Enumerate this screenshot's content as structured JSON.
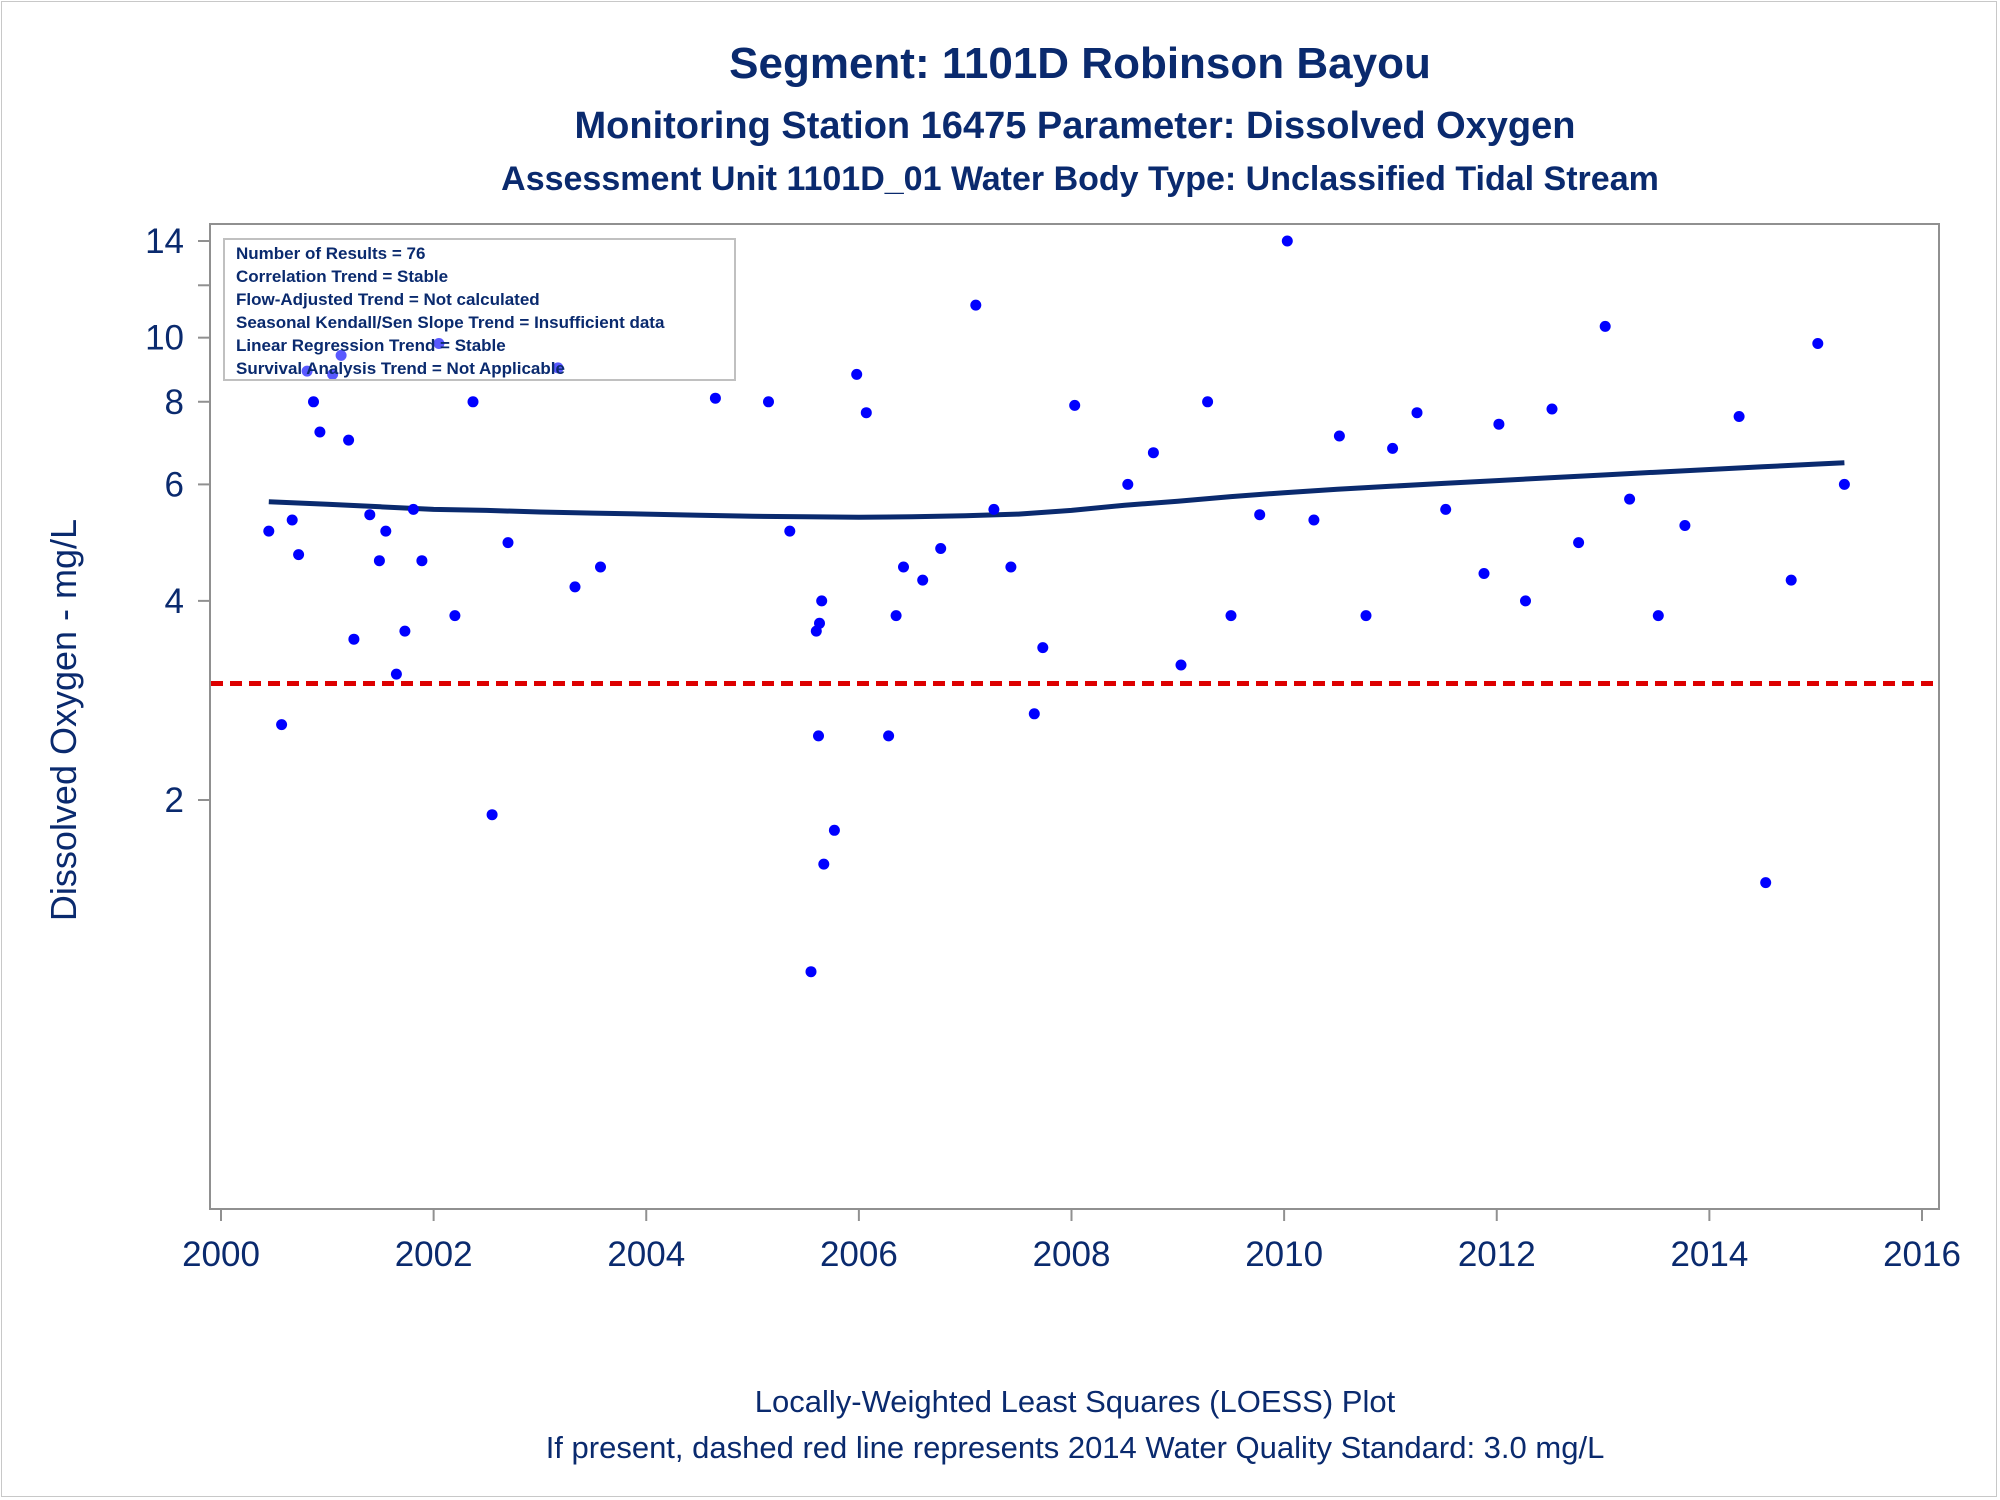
{
  "chart_data": {
    "type": "scatter",
    "title": "Segment: 1101D  Robinson Bayou",
    "subtitle": "Monitoring Station 16475 Parameter: Dissolved Oxygen",
    "subtitle2": "Assessment Unit 1101D_01   Water Body Type: Unclassified Tidal Stream",
    "ylabel": "Dissolved Oxygen - mg/L",
    "xlabel": "",
    "footnote1": "Locally-Weighted Least Squares (LOESS) Plot",
    "footnote2": "If present, dashed red line represents 2014 Water Quality Standard: 3.0 mg/L",
    "x_scale": "linear",
    "y_scale": "log",
    "xlim": [
      2000,
      2016
    ],
    "ylim": [
      0.88,
      14.3
    ],
    "x_ticks": [
      2000,
      2002,
      2004,
      2006,
      2008,
      2010,
      2012,
      2014,
      2016
    ],
    "x_tick_labels": [
      "2000",
      "2002",
      "2004",
      "2006",
      "2008",
      "2010",
      "2012",
      "2014",
      "2016"
    ],
    "y_ticks": [
      2,
      4,
      6,
      8,
      10,
      14
    ],
    "y_tick_labels": [
      "2",
      "4",
      "6",
      "8",
      "10",
      "14"
    ],
    "y_minor_ticks": [
      12
    ],
    "grid": false,
    "legend": "none",
    "colors": {
      "points": "#0000ff",
      "loess": "#0a2a6e",
      "standard": "#dd0000",
      "text": "#0a2a6e",
      "axis": "#909090"
    },
    "stats_box": {
      "placement": "top-left",
      "lines": [
        "Number of Results = 76",
        "Correlation Trend = Stable",
        "Flow-Adjusted Trend = Not calculated",
        "Seasonal Kendall/Sen Slope Trend = Insufficient data",
        "Linear Regression Trend = Stable",
        "Survival Analysis Trend = Not Applicable"
      ]
    },
    "standard_line": {
      "value": 3.0
    },
    "series": [
      {
        "kind": "points",
        "points": [
          [
            2000.45,
            5.1
          ],
          [
            2000.57,
            2.6
          ],
          [
            2000.67,
            5.3
          ],
          [
            2000.73,
            4.7
          ],
          [
            2000.81,
            8.9
          ],
          [
            2000.87,
            8.0
          ],
          [
            2000.93,
            7.2
          ],
          [
            2001.05,
            8.8
          ],
          [
            2001.13,
            9.4
          ],
          [
            2001.2,
            7.0
          ],
          [
            2001.25,
            3.5
          ],
          [
            2001.4,
            5.4
          ],
          [
            2001.49,
            4.6
          ],
          [
            2001.55,
            5.1
          ],
          [
            2001.65,
            3.1
          ],
          [
            2001.73,
            3.6
          ],
          [
            2001.81,
            5.5
          ],
          [
            2001.89,
            4.6
          ],
          [
            2002.05,
            9.8
          ],
          [
            2002.2,
            3.8
          ],
          [
            2002.37,
            8.0
          ],
          [
            2002.55,
            1.9
          ],
          [
            2002.7,
            4.9
          ],
          [
            2003.17,
            9.0
          ],
          [
            2003.33,
            4.2
          ],
          [
            2003.57,
            4.5
          ],
          [
            2004.65,
            8.1
          ],
          [
            2005.15,
            8.0
          ],
          [
            2005.35,
            5.1
          ],
          [
            2005.55,
            1.1
          ],
          [
            2005.6,
            3.6
          ],
          [
            2005.62,
            2.5
          ],
          [
            2005.63,
            3.7
          ],
          [
            2005.65,
            4.0
          ],
          [
            2005.67,
            1.6
          ],
          [
            2005.77,
            1.8
          ],
          [
            2005.98,
            8.8
          ],
          [
            2006.07,
            7.7
          ],
          [
            2006.28,
            2.5
          ],
          [
            2006.35,
            3.8
          ],
          [
            2006.42,
            4.5
          ],
          [
            2006.6,
            4.3
          ],
          [
            2006.77,
            4.8
          ],
          [
            2007.1,
            11.2
          ],
          [
            2007.27,
            5.5
          ],
          [
            2007.43,
            4.5
          ],
          [
            2007.65,
            2.7
          ],
          [
            2007.73,
            3.4
          ],
          [
            2008.03,
            7.9
          ],
          [
            2008.53,
            6.0
          ],
          [
            2008.77,
            6.7
          ],
          [
            2009.03,
            3.2
          ],
          [
            2009.28,
            8.0
          ],
          [
            2009.5,
            3.8
          ],
          [
            2009.77,
            5.4
          ],
          [
            2010.03,
            14.0
          ],
          [
            2010.28,
            5.3
          ],
          [
            2010.52,
            7.1
          ],
          [
            2010.77,
            3.8
          ],
          [
            2011.02,
            6.8
          ],
          [
            2011.25,
            7.7
          ],
          [
            2011.52,
            5.5
          ],
          [
            2011.88,
            4.4
          ],
          [
            2012.02,
            7.4
          ],
          [
            2012.27,
            4.0
          ],
          [
            2012.52,
            7.8
          ],
          [
            2012.77,
            4.9
          ],
          [
            2013.02,
            10.4
          ],
          [
            2013.25,
            5.7
          ],
          [
            2013.52,
            3.8
          ],
          [
            2013.77,
            5.2
          ],
          [
            2014.28,
            7.6
          ],
          [
            2014.53,
            1.5
          ],
          [
            2014.77,
            4.3
          ],
          [
            2015.02,
            9.8
          ],
          [
            2015.27,
            6.0
          ]
        ]
      },
      {
        "kind": "loess",
        "points": [
          [
            2000.45,
            5.65
          ],
          [
            2001.0,
            5.6
          ],
          [
            2001.5,
            5.55
          ],
          [
            2002.0,
            5.5
          ],
          [
            2002.5,
            5.48
          ],
          [
            2003.0,
            5.45
          ],
          [
            2003.5,
            5.43
          ],
          [
            2004.0,
            5.41
          ],
          [
            2004.5,
            5.39
          ],
          [
            2005.0,
            5.37
          ],
          [
            2005.5,
            5.36
          ],
          [
            2006.0,
            5.35
          ],
          [
            2006.5,
            5.36
          ],
          [
            2007.0,
            5.38
          ],
          [
            2007.5,
            5.41
          ],
          [
            2008.0,
            5.48
          ],
          [
            2008.5,
            5.58
          ],
          [
            2009.0,
            5.66
          ],
          [
            2009.5,
            5.75
          ],
          [
            2010.0,
            5.83
          ],
          [
            2010.5,
            5.9
          ],
          [
            2011.0,
            5.96
          ],
          [
            2011.5,
            6.02
          ],
          [
            2012.0,
            6.08
          ],
          [
            2012.5,
            6.14
          ],
          [
            2013.0,
            6.2
          ],
          [
            2013.5,
            6.26
          ],
          [
            2014.0,
            6.32
          ],
          [
            2014.5,
            6.38
          ],
          [
            2015.0,
            6.44
          ],
          [
            2015.27,
            6.47
          ]
        ]
      }
    ]
  }
}
